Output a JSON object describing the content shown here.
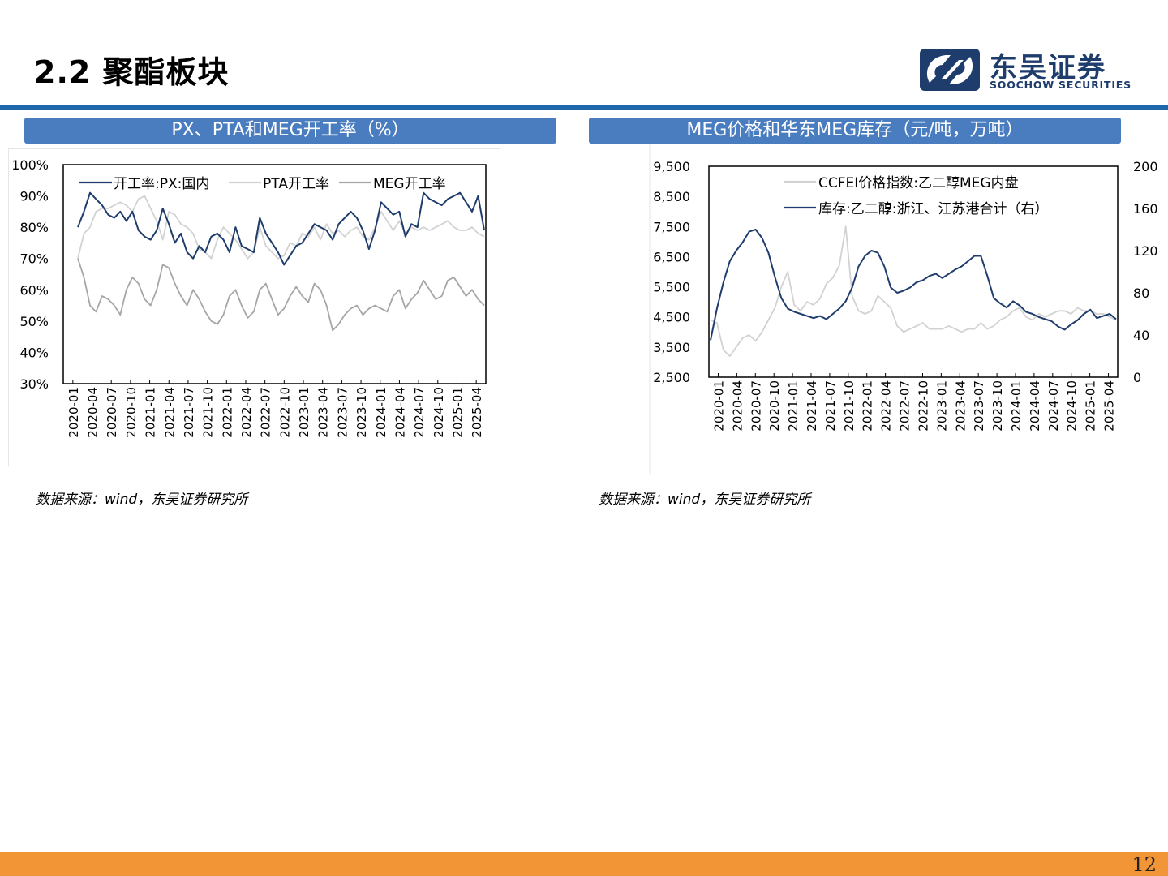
{
  "page": {
    "title": "2.2 聚酯板块",
    "page_number": "12"
  },
  "logo": {
    "name_cn": "东吴证券",
    "name_en": "SOOCHOW SECURITIES",
    "brand_color": "#1e3c6c"
  },
  "colors": {
    "accent_blue": "#1f66ad",
    "header_blue": "#4a7dbf",
    "footer_orange": "#f29536",
    "series_dark": "#1e3c6c",
    "series_light": "#d2d2d2",
    "series_gray": "#a6a6a6"
  },
  "panels": [
    {
      "title": "PX、PTA和MEG开工率（%）",
      "source": "数据来源：wind，东吴证券研究所"
    },
    {
      "title": "MEG价格和华东MEG库存（元/吨，万吨）",
      "source": "数据来源：wind，东吴证券研究所"
    }
  ],
  "chart_data": [
    {
      "type": "line",
      "x_ticks": [
        "2020-01",
        "2020-04",
        "2020-07",
        "2020-10",
        "2021-01",
        "2021-04",
        "2021-07",
        "2021-10",
        "2022-01",
        "2022-04",
        "2022-07",
        "2022-10",
        "2023-01",
        "2023-04",
        "2023-07",
        "2023-10",
        "2024-01",
        "2024-04",
        "2024-07",
        "2024-10",
        "2025-01",
        "2025-04"
      ],
      "y_ticks": [
        "100%",
        "90%",
        "80%",
        "70%",
        "60%",
        "50%",
        "40%",
        "30%"
      ],
      "ylim": [
        30,
        100
      ],
      "legend_position": "top",
      "series": [
        {
          "name": "开工率:PX:国内",
          "color": "#1e3c6c",
          "values": [
            80,
            85,
            91,
            89,
            87,
            84,
            83,
            85,
            82,
            85,
            79,
            77,
            76,
            79,
            86,
            81,
            75,
            78,
            72,
            70,
            74,
            72,
            77,
            78,
            76,
            72,
            80,
            74,
            73,
            72,
            83,
            78,
            75,
            72,
            68,
            71,
            74,
            75,
            78,
            81,
            80,
            79,
            76,
            81,
            83,
            85,
            83,
            79,
            73,
            79,
            88,
            86,
            84,
            85,
            77,
            81,
            80,
            91,
            89,
            88,
            87,
            89,
            90,
            91,
            88,
            85,
            90,
            79
          ]
        },
        {
          "name": "PTA开工率",
          "color": "#d2d2d2",
          "values": [
            70,
            78,
            80,
            85,
            86,
            86,
            87,
            88,
            87,
            85,
            89,
            90,
            86,
            82,
            76,
            85,
            84,
            81,
            80,
            78,
            73,
            72,
            70,
            76,
            80,
            78,
            76,
            73,
            70,
            72,
            80,
            74,
            72,
            70,
            71,
            75,
            74,
            78,
            77,
            80,
            76,
            81,
            78,
            79,
            77,
            79,
            80,
            77,
            76,
            80,
            85,
            82,
            79,
            82,
            78,
            80,
            79,
            80,
            79,
            80,
            81,
            82,
            80,
            79,
            79,
            80,
            78,
            77
          ]
        },
        {
          "name": "MEG开工率",
          "color": "#a6a6a6",
          "values": [
            70,
            64,
            55,
            53,
            58,
            57,
            55,
            52,
            60,
            64,
            62,
            57,
            55,
            60,
            68,
            67,
            62,
            58,
            55,
            60,
            57,
            53,
            50,
            49,
            52,
            58,
            60,
            55,
            51,
            53,
            60,
            62,
            57,
            52,
            54,
            58,
            61,
            58,
            56,
            62,
            60,
            55,
            47,
            49,
            52,
            54,
            55,
            52,
            54,
            55,
            54,
            53,
            58,
            60,
            54,
            57,
            59,
            63,
            60,
            57,
            58,
            63,
            64,
            61,
            58,
            60,
            57,
            55
          ]
        }
      ]
    },
    {
      "type": "line",
      "x_ticks": [
        "2020-01",
        "2020-04",
        "2020-07",
        "2020-10",
        "2021-01",
        "2021-04",
        "2021-07",
        "2021-10",
        "2022-01",
        "2022-04",
        "2022-07",
        "2022-10",
        "2023-01",
        "2023-04",
        "2023-07",
        "2023-10",
        "2024-01",
        "2024-04",
        "2024-07",
        "2024-10",
        "2025-01",
        "2025-04"
      ],
      "y_left_ticks": [
        "9,500",
        "8,500",
        "7,500",
        "6,500",
        "5,500",
        "4,500",
        "3,500",
        "2,500"
      ],
      "y_right_ticks": [
        "200",
        "160",
        "120",
        "80",
        "40",
        "0"
      ],
      "y_left_range": [
        2500,
        9500
      ],
      "y_right_range": [
        0,
        200
      ],
      "legend_position": "top",
      "series": [
        {
          "name": "CCFEI价格指数:乙二醇MEG内盘",
          "axis": "left",
          "color": "#d2d2d2",
          "values": [
            4400,
            4300,
            3400,
            3200,
            3500,
            3800,
            3900,
            3700,
            4000,
            4400,
            4800,
            5500,
            6000,
            4900,
            4700,
            5000,
            4900,
            5100,
            5600,
            5800,
            6200,
            7500,
            5200,
            4700,
            4600,
            4700,
            5200,
            5000,
            4800,
            4200,
            4000,
            4100,
            4200,
            4300,
            4100,
            4100,
            4100,
            4200,
            4100,
            4000,
            4100,
            4100,
            4300,
            4100,
            4200,
            4400,
            4500,
            4700,
            4800,
            4500,
            4400,
            4600,
            4500,
            4600,
            4700,
            4700,
            4600,
            4800,
            4700,
            4700,
            4600,
            4600,
            4500,
            4400
          ]
        },
        {
          "name": "库存:乙二醇:浙江、江苏港合计（右）",
          "axis": "right",
          "color": "#1e3c6c",
          "values": [
            35,
            65,
            90,
            110,
            120,
            128,
            138,
            140,
            132,
            118,
            95,
            75,
            65,
            62,
            60,
            58,
            56,
            58,
            55,
            60,
            65,
            72,
            85,
            105,
            115,
            120,
            118,
            105,
            85,
            80,
            82,
            85,
            90,
            92,
            96,
            98,
            94,
            98,
            102,
            105,
            110,
            115,
            115,
            96,
            75,
            70,
            66,
            72,
            68,
            62,
            60,
            57,
            55,
            53,
            48,
            45,
            50,
            54,
            60,
            64,
            56,
            58,
            60,
            55
          ]
        }
      ]
    }
  ]
}
